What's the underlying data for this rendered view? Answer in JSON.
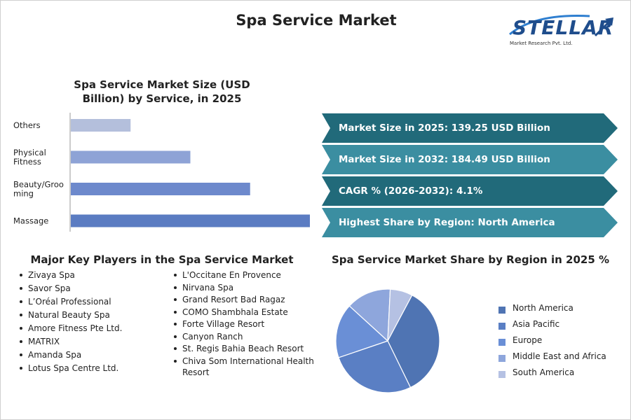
{
  "title": "Spa Service Market",
  "logo": {
    "word": "STELLAR",
    "sub": "Market Research Pvt. Ltd."
  },
  "colors": {
    "bar_others": "#b4bfdc",
    "bar_physical": "#8ea3d6",
    "bar_beauty": "#6d89cc",
    "bar_massage": "#5b7cc2",
    "arrow_dark": "#216a7a",
    "arrow_light": "#3b8ea1",
    "pie_north_america": "#4f74b3",
    "pie_asia_pacific": "#5a7fc4",
    "pie_europe": "#6a8fd6",
    "pie_mea": "#8ea6dc",
    "pie_south_america": "#b5c1e3"
  },
  "info_cards": [
    {
      "text": "Market Size in 2025: 139.25 USD Billion"
    },
    {
      "text": "Market Size in 2032: 184.49 USD Billion"
    },
    {
      "text": "CAGR % (2026-2032): 4.1%"
    },
    {
      "text": "Highest Share by Region: North America"
    }
  ],
  "players": {
    "title": "Major Key Players in the Spa Service Market",
    "col1": [
      "Zivaya Spa",
      "Savor Spa",
      "L’Oréal Professional",
      "Natural Beauty Spa",
      "Amore Fitness Pte Ltd.",
      "MATRIX",
      "Amanda Spa",
      "Lotus Spa Centre Ltd."
    ],
    "col2": [
      "L'Occitane En Provence",
      "Nirvana Spa",
      "Grand Resort Bad Ragaz",
      "COMO Shambhala Estate",
      "Forte Village Resort",
      "Canyon Ranch",
      "St. Regis Bahia Beach Resort",
      "Chiva Som International Health Resort"
    ]
  },
  "chart_data": [
    {
      "type": "bar",
      "orientation": "horizontal",
      "title": "Spa Service Market Size (USD Billion) by Service, in 2025",
      "categories": [
        "Others",
        "Physical Fitness",
        "Beauty/Grooming",
        "Massage"
      ],
      "category_lines": [
        [
          "Others"
        ],
        [
          "Physical",
          "Fitness"
        ],
        [
          "Beauty/Groo",
          "ming"
        ],
        [
          "Massage"
        ]
      ],
      "values": [
        10,
        20,
        30,
        40
      ],
      "xlim": [
        0,
        40
      ],
      "grid": false,
      "legend": "none"
    },
    {
      "type": "pie",
      "title": "Spa Service Market Share by Region in 2025 %",
      "labels": [
        "North America",
        "Asia Pacific",
        "Europe",
        "Middle East and Africa",
        "South America"
      ],
      "values": [
        35,
        27,
        17,
        14,
        7
      ],
      "legend": "right"
    }
  ]
}
